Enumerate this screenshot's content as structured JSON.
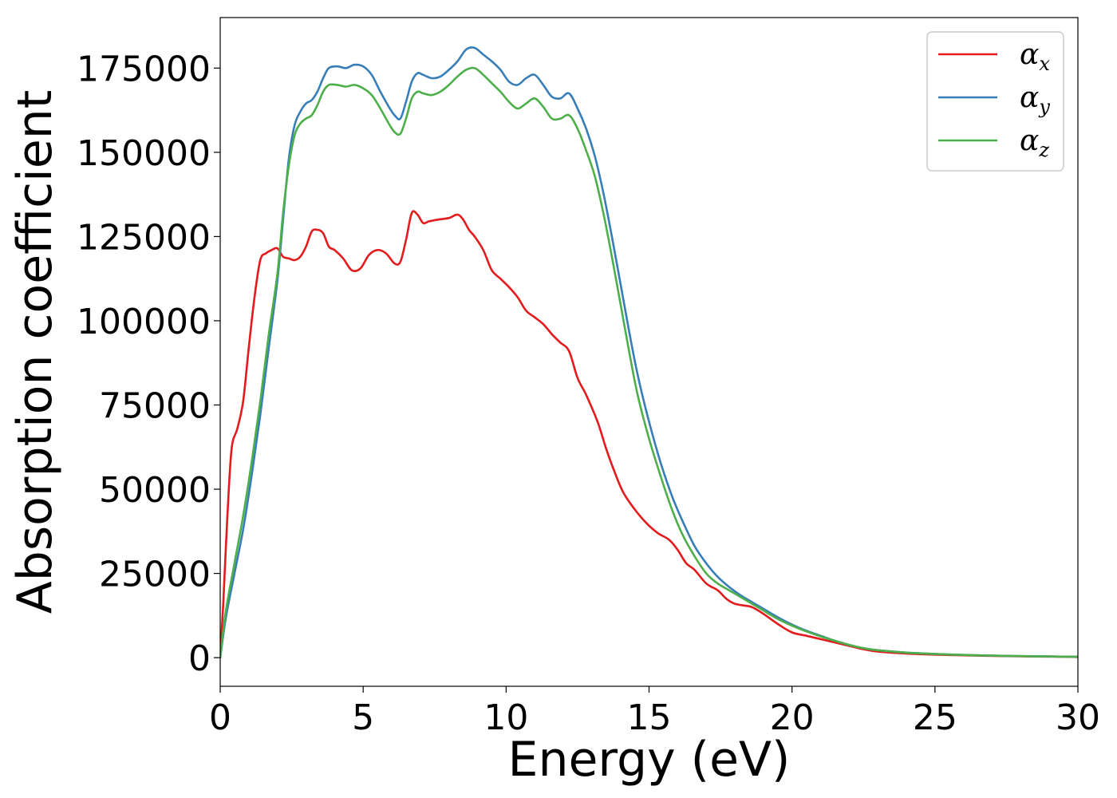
{
  "chart_data": {
    "type": "line",
    "xlabel": "Energy (eV)",
    "ylabel": "Absorption coefficient",
    "xlim": [
      0,
      30
    ],
    "ylim": [
      -8500,
      190000
    ],
    "xticks": [
      0,
      5,
      10,
      15,
      20,
      25,
      30
    ],
    "xtick_labels": [
      "0",
      "5",
      "10",
      "15",
      "20",
      "25",
      "30"
    ],
    "yticks": [
      0,
      25000,
      50000,
      75000,
      100000,
      125000,
      150000,
      175000
    ],
    "ytick_labels": [
      "0",
      "25000",
      "50000",
      "75000",
      "100000",
      "125000",
      "150000",
      "175000"
    ],
    "grid": false,
    "legend_position": "top-right",
    "series": [
      {
        "name": "α",
        "sub": "x",
        "color": "#e41a1c",
        "x": [
          0,
          0.1,
          0.25,
          0.4,
          0.6,
          0.8,
          1.0,
          1.2,
          1.4,
          1.6,
          1.8,
          2.0,
          2.2,
          2.4,
          2.6,
          2.8,
          3.0,
          3.2,
          3.4,
          3.6,
          3.8,
          4.0,
          4.3,
          4.6,
          4.9,
          5.2,
          5.5,
          5.8,
          6.1,
          6.3,
          6.5,
          6.7,
          6.9,
          7.1,
          7.3,
          7.6,
          8.0,
          8.3,
          8.5,
          8.7,
          8.9,
          9.2,
          9.5,
          9.8,
          10.1,
          10.4,
          10.7,
          11.0,
          11.3,
          11.6,
          11.9,
          12.2,
          12.5,
          12.8,
          13.2,
          13.5,
          13.8,
          14.1,
          14.5,
          14.9,
          15.3,
          15.7,
          16.0,
          16.3,
          16.6,
          17.0,
          17.4,
          17.7,
          18.0,
          18.3,
          18.6,
          19.0,
          19.5,
          20.0,
          20.5,
          21.0,
          21.5,
          22.0,
          22.5,
          23.0,
          24.0,
          25.0,
          26.0,
          27.0,
          28.0,
          29.0,
          30.0
        ],
        "y": [
          0,
          15000,
          42000,
          62000,
          68000,
          76000,
          92000,
          107000,
          118000,
          120000,
          121000,
          121500,
          119000,
          118500,
          118000,
          119000,
          122000,
          126500,
          127000,
          126000,
          122000,
          121000,
          118500,
          115000,
          115500,
          119500,
          121000,
          120000,
          117000,
          117500,
          124000,
          132000,
          131500,
          129000,
          129500,
          130000,
          130500,
          131500,
          130000,
          127000,
          125000,
          121000,
          115000,
          112500,
          110000,
          107000,
          103000,
          101000,
          99000,
          96000,
          93500,
          91000,
          83000,
          78000,
          70000,
          62000,
          55000,
          49000,
          44000,
          40000,
          37000,
          35000,
          32000,
          28000,
          26000,
          22000,
          20000,
          17500,
          16000,
          15500,
          15000,
          13000,
          10000,
          7500,
          6500,
          5500,
          4500,
          3500,
          2500,
          1800,
          1200,
          900,
          700,
          500,
          400,
          300,
          200
        ]
      },
      {
        "name": "α",
        "sub": "y",
        "color": "#377eb8",
        "x": [
          0,
          0.2,
          0.5,
          0.8,
          1.1,
          1.4,
          1.7,
          2.0,
          2.2,
          2.4,
          2.6,
          2.8,
          3.0,
          3.2,
          3.4,
          3.6,
          3.8,
          4.1,
          4.4,
          4.7,
          5.0,
          5.3,
          5.6,
          5.9,
          6.1,
          6.3,
          6.5,
          6.7,
          6.9,
          7.1,
          7.4,
          7.7,
          8.0,
          8.3,
          8.6,
          8.9,
          9.2,
          9.5,
          9.8,
          10.1,
          10.4,
          10.7,
          11.0,
          11.3,
          11.6,
          11.9,
          12.2,
          12.5,
          12.8,
          13.1,
          13.4,
          13.7,
          14.0,
          14.3,
          14.6,
          15.0,
          15.4,
          15.8,
          16.2,
          16.6,
          17.0,
          17.4,
          17.8,
          18.2,
          18.6,
          19.0,
          19.5,
          20.0,
          20.5,
          21.0,
          21.5,
          22.0,
          22.5,
          23.0,
          24.0,
          25.0,
          26.0,
          27.0,
          28.0,
          29.0,
          30.0
        ],
        "y": [
          0,
          12000,
          25000,
          38000,
          54000,
          72000,
          92000,
          112000,
          130000,
          148000,
          158000,
          162000,
          164500,
          165500,
          168000,
          172000,
          175000,
          175500,
          175000,
          176000,
          175500,
          173000,
          168000,
          163500,
          161000,
          160000,
          165000,
          171000,
          173500,
          173000,
          172000,
          172500,
          174500,
          177000,
          180500,
          181000,
          179000,
          177000,
          174500,
          171000,
          170000,
          172000,
          173000,
          170000,
          166500,
          166000,
          167500,
          163000,
          157000,
          149000,
          138000,
          125000,
          111000,
          97000,
          84000,
          70000,
          58000,
          48000,
          40000,
          33000,
          28000,
          24000,
          21000,
          18500,
          16500,
          14500,
          12000,
          9800,
          8000,
          6500,
          5000,
          3800,
          2800,
          2200,
          1500,
          1100,
          800,
          600,
          450,
          350,
          250
        ]
      },
      {
        "name": "α",
        "sub": "z",
        "color": "#4daf4a",
        "x": [
          0,
          0.2,
          0.5,
          0.8,
          1.1,
          1.4,
          1.7,
          2.0,
          2.2,
          2.4,
          2.6,
          2.8,
          3.0,
          3.2,
          3.4,
          3.6,
          3.8,
          4.1,
          4.4,
          4.7,
          5.0,
          5.3,
          5.6,
          5.9,
          6.1,
          6.3,
          6.5,
          6.7,
          6.9,
          7.1,
          7.4,
          7.7,
          8.0,
          8.3,
          8.6,
          8.9,
          9.2,
          9.5,
          9.8,
          10.1,
          10.4,
          10.7,
          11.0,
          11.3,
          11.6,
          11.9,
          12.2,
          12.5,
          12.8,
          13.1,
          13.4,
          13.7,
          14.0,
          14.3,
          14.6,
          15.0,
          15.4,
          15.8,
          16.2,
          16.6,
          17.0,
          17.4,
          17.8,
          18.2,
          18.6,
          19.0,
          19.5,
          20.0,
          20.5,
          21.0,
          21.5,
          22.0,
          22.5,
          23.0,
          24.0,
          25.0,
          26.0,
          27.0,
          28.0,
          29.0,
          30.0
        ],
        "y": [
          0,
          14000,
          28000,
          42000,
          58000,
          76000,
          96000,
          114000,
          132000,
          146000,
          155000,
          158500,
          160000,
          161000,
          164000,
          168000,
          170000,
          170000,
          169500,
          170000,
          169000,
          167000,
          163000,
          158500,
          156000,
          155500,
          160000,
          166000,
          168000,
          167500,
          167000,
          168000,
          170000,
          172500,
          174500,
          175000,
          173000,
          170500,
          168000,
          165000,
          163000,
          164500,
          166000,
          163500,
          160000,
          160000,
          161000,
          157000,
          150500,
          143000,
          132000,
          119000,
          105000,
          91000,
          78000,
          65000,
          54000,
          44000,
          36000,
          30000,
          25000,
          22000,
          20000,
          18000,
          16000,
          14000,
          11500,
          9500,
          7800,
          6300,
          5000,
          3800,
          2800,
          2200,
          1500,
          1100,
          800,
          600,
          450,
          350,
          250
        ]
      }
    ]
  }
}
